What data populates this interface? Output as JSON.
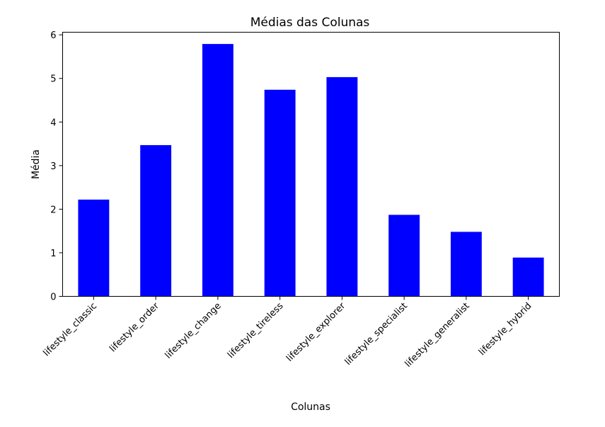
{
  "chart_data": {
    "type": "bar",
    "title": "Médias das Colunas",
    "xlabel": "Colunas",
    "ylabel": "Média",
    "categories": [
      "lifestyle_classic",
      "lifestyle_order",
      "lifestyle_change",
      "lifestyle_tireless",
      "lifestyle_explorer",
      "lifestyle_specialist",
      "lifestyle_generalist",
      "lifestyle_hybrid"
    ],
    "values": [
      2.22,
      3.47,
      5.79,
      4.74,
      5.03,
      1.87,
      1.48,
      0.89
    ],
    "ylim": [
      0,
      6.06
    ],
    "yticks": [
      0,
      1,
      2,
      3,
      4,
      5,
      6
    ],
    "bar_color": "#0000ff",
    "grid": false
  }
}
